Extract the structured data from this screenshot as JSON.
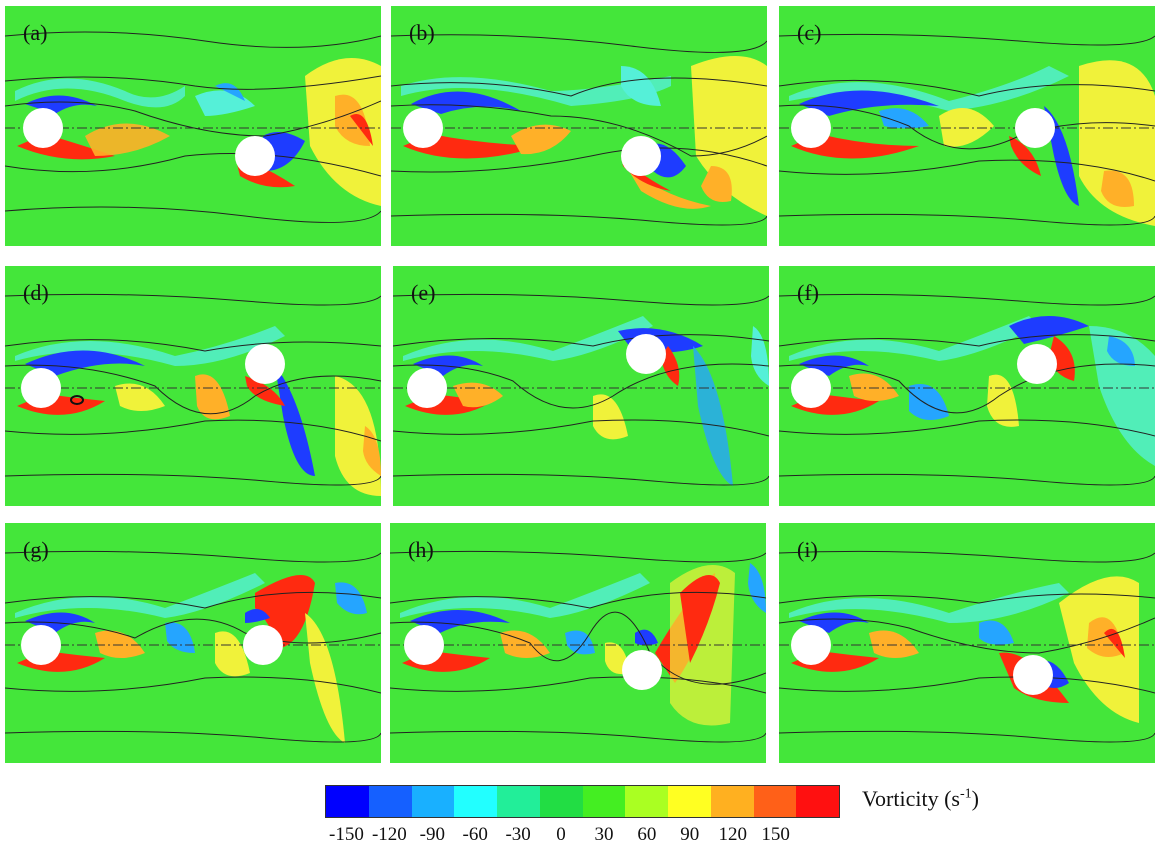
{
  "panels": [
    {
      "label": "(a)"
    },
    {
      "label": "(b)"
    },
    {
      "label": "(c)"
    },
    {
      "label": "(d)"
    },
    {
      "label": "(e)"
    },
    {
      "label": "(f)"
    },
    {
      "label": "(g)"
    },
    {
      "label": "(h)"
    },
    {
      "label": "(i)"
    }
  ],
  "colorbar": {
    "title_main": "Vorticity (s",
    "title_sup": "-1",
    "title_end": ")",
    "ticks": [
      "-150",
      "-120",
      "-90",
      "-60",
      "-30",
      "0",
      "30",
      "60",
      "90",
      "120",
      "150"
    ],
    "colors": [
      "#0000ff",
      "#1560ff",
      "#19b0ff",
      "#22ffff",
      "#22ee99",
      "#22dd44",
      "#44ee22",
      "#aaff22",
      "#ffff22",
      "#ffb020",
      "#ff6018",
      "#ff1010"
    ]
  },
  "colors": {
    "background": "#44e63a",
    "neg_strong": "#1e3cff",
    "neg_mid": "#25a5ff",
    "neg_weak": "#55f0d8",
    "pos_weak": "#f0f23a",
    "pos_mid": "#ffb028",
    "pos_strong": "#ff2a10"
  }
}
